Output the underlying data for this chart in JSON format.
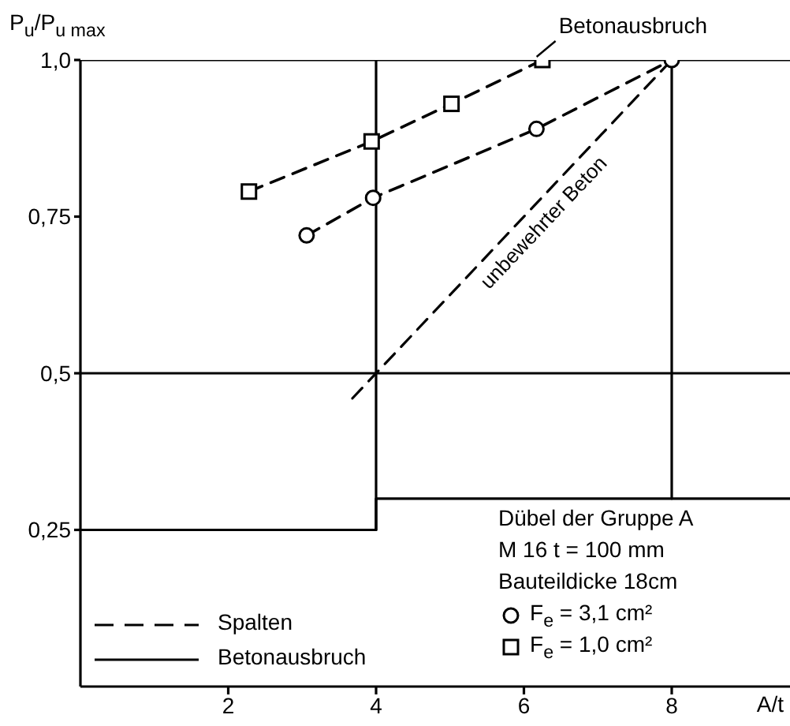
{
  "chart_data": {
    "type": "line",
    "ylabel": "P$_{u}$/P$_{u max}$",
    "xlabel": "A/t",
    "xlim": [
      0,
      9.6
    ],
    "ylim": [
      0,
      1
    ],
    "xticks": [
      2,
      4,
      6,
      8
    ],
    "yticks": [
      {
        "value": 0.25,
        "label": "0,25"
      },
      {
        "value": 0.5,
        "label": "0,5"
      },
      {
        "value": 0.75,
        "label": "0,75"
      },
      {
        "value": 1,
        "label": "1,0"
      }
    ],
    "legend": "bottom right",
    "annotations": [
      "Spalten",
      "Betonausbruch",
      "Dübel der Gruppe A",
      "M 16   t = 100 mm",
      "Bauteildicke 18cm",
      {
        "text": "Betonausbruch",
        "x": 6.3,
        "y": 1.0
      },
      {
        "text": "unbewehrter Beton",
        "x": 6.1,
        "y": 0.76
      }
    ],
    "series": [
      {
        "name": "F$_{e}$ = 3,1 cm²",
        "color": "#000000",
        "x": [
          3.06,
          3.96,
          6.17,
          8
        ],
        "values": [
          0.72,
          0.78,
          0.89,
          1.0
        ],
        "marker": "circle",
        "line_style": "dashed"
      },
      {
        "name": "F$_{e}$ = 1,0 cm²",
        "color": "#000000",
        "x": [
          2.28,
          3.94,
          5.02,
          6.25
        ],
        "values": [
          0.79,
          0.87,
          0.93,
          1.0
        ],
        "marker": "square",
        "line_style": "dashed"
      },
      {
        "color": "#000000",
        "x": [
          3.68,
          8
        ],
        "values": [
          0.46,
          1.0
        ],
        "marker": "none",
        "line_style": "dashed"
      },
      {
        "color": "#000000",
        "x": [
          0,
          4,
          4,
          9.6
        ],
        "values": [
          0.25,
          0.25,
          0.3,
          0.3
        ],
        "marker": "none",
        "line_style": "solid"
      },
      {
        "color": "#000000",
        "x": [
          4,
          4
        ],
        "values": [
          0.25,
          1.0
        ],
        "marker": "none",
        "line_style": "solid"
      },
      {
        "color": "#000000",
        "x": [
          8,
          8
        ],
        "values": [
          0.3,
          1.0
        ],
        "marker": "none",
        "line_style": "solid"
      },
      {
        "color": "#000000",
        "x": [
          0,
          9.6
        ],
        "values": [
          0.5,
          0.5
        ],
        "marker": "none",
        "line_style": "solid"
      },
      {
        "color": "#000000",
        "x": [
          0,
          9.6
        ],
        "values": [
          1.0,
          1.0
        ],
        "marker": "none",
        "line_style": "solid"
      }
    ]
  }
}
